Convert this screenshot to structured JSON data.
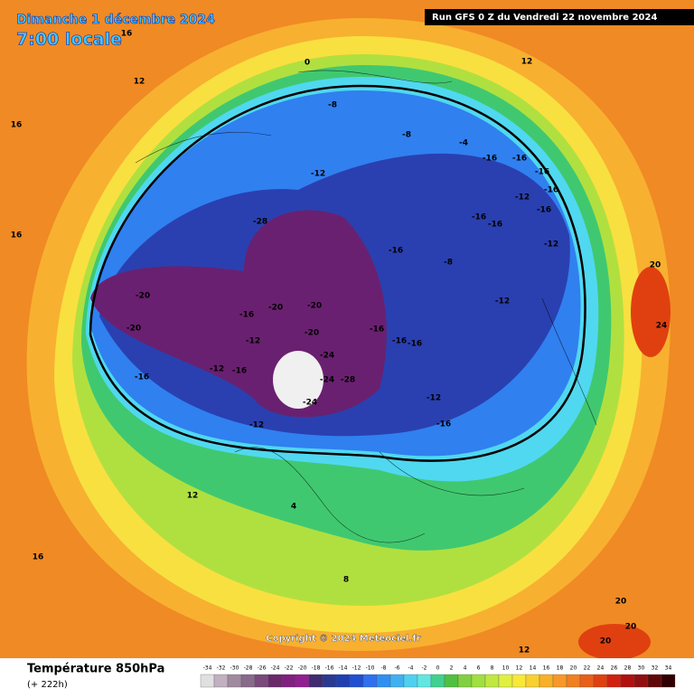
{
  "header": {
    "date": "Dimanche 1 décembre 2024",
    "time": "7:00 locale",
    "run": "Run GFS 0 Z du Vendredi 22 novembre 2024"
  },
  "footer": {
    "variable": "Température 850hPa",
    "lead": "(+ 222h)",
    "copyright": "Copyright © 2024 Meteociel.fr"
  },
  "legend": {
    "ticks": [
      -34,
      -32,
      -30,
      -28,
      -26,
      -24,
      -22,
      -20,
      -18,
      -16,
      -14,
      -12,
      -10,
      -8,
      -6,
      -4,
      -2,
      0,
      2,
      4,
      6,
      8,
      10,
      12,
      14,
      16,
      18,
      20,
      22,
      24,
      26,
      28,
      30,
      32,
      34
    ],
    "colors": [
      "#e0e0e0",
      "#c0b0c0",
      "#a08aa0",
      "#8a6a8a",
      "#7a4a7a",
      "#6a2a6a",
      "#802080",
      "#902090",
      "#402a70",
      "#2a3a90",
      "#2040b0",
      "#2050d0",
      "#3070f0",
      "#3090f0",
      "#40b0f0",
      "#50d0f0",
      "#60e8e0",
      "#40d090",
      "#50c040",
      "#80d040",
      "#a0e040",
      "#c0e840",
      "#e0f040",
      "#f8e838",
      "#f8d030",
      "#f8b028",
      "#f89828",
      "#f08020",
      "#e86018",
      "#e04010",
      "#d02010",
      "#b01010",
      "#901010",
      "#600808",
      "#300000"
    ]
  },
  "map": {
    "labels": [
      -16,
      -16,
      -16,
      -16,
      -12,
      -16,
      -16,
      -16,
      -12,
      -12,
      -8,
      -16,
      -16,
      -16,
      -16,
      -12,
      -16,
      -24,
      -28,
      -24,
      -20,
      -20,
      -20,
      -24,
      -28,
      -20,
      -20,
      -16,
      -12,
      -16,
      -12,
      -16,
      -12,
      -12,
      -8,
      -4,
      -8,
      0,
      12,
      12,
      16,
      16,
      16,
      24,
      20,
      20,
      20,
      20,
      4,
      8,
      12,
      12,
      16
    ]
  }
}
